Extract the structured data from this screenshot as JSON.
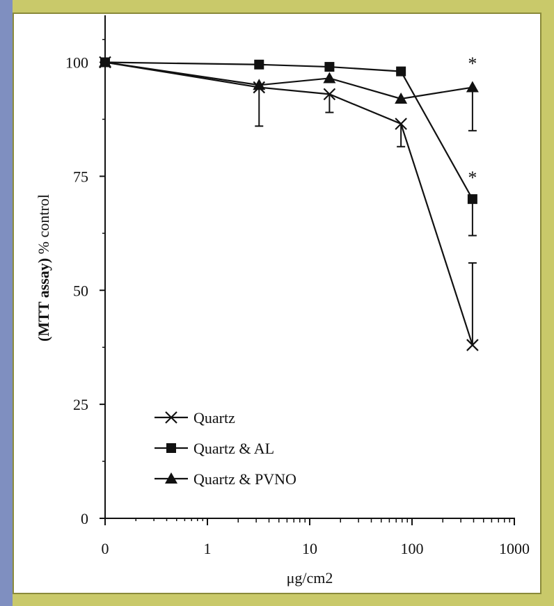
{
  "colors": {
    "frame": "#c9c96a",
    "stripe": "#7f8fc0",
    "ink": "#111111"
  },
  "chart_data": {
    "type": "line",
    "title": "",
    "xlabel": "μg/cm2",
    "ylabel": "% control",
    "ylabel_prefix": "(MTT assay)",
    "x_scale": "log (0 placed at left edge)",
    "x_ticks": [
      "0",
      "1",
      "10",
      "100",
      "1000"
    ],
    "y_ticks": [
      "0",
      "25",
      "50",
      "75",
      "100"
    ],
    "ylim": [
      0,
      110
    ],
    "grid": false,
    "legend_position": "bottom-left",
    "series": [
      {
        "name": "Quartz",
        "marker": "x",
        "x": [
          0,
          3.2,
          15.6,
          78,
          390
        ],
        "y": [
          100,
          94.5,
          93,
          86.5,
          38
        ],
        "err_up": [
          0,
          0,
          0,
          0,
          18
        ],
        "err_down": [
          0,
          0,
          4,
          5,
          0
        ]
      },
      {
        "name": "Quartz & AL",
        "marker": "square",
        "x": [
          0,
          3.2,
          15.6,
          78,
          390
        ],
        "y": [
          100,
          99.5,
          99,
          98,
          70
        ],
        "err_up": [
          0,
          0,
          0,
          0,
          0
        ],
        "err_down": [
          0,
          0,
          0,
          0,
          8
        ]
      },
      {
        "name": "Quartz & PVNO",
        "marker": "triangle",
        "x": [
          0,
          3.2,
          15.6,
          78,
          390
        ],
        "y": [
          100,
          95,
          96.5,
          92,
          94.5
        ],
        "err_up": [
          0,
          0,
          0,
          0,
          0
        ],
        "err_down": [
          0,
          9,
          0,
          0,
          9.5
        ]
      }
    ],
    "annotations": [
      {
        "text": "*",
        "x": 390,
        "y": 99
      },
      {
        "text": "*",
        "x": 390,
        "y": 74
      }
    ]
  }
}
